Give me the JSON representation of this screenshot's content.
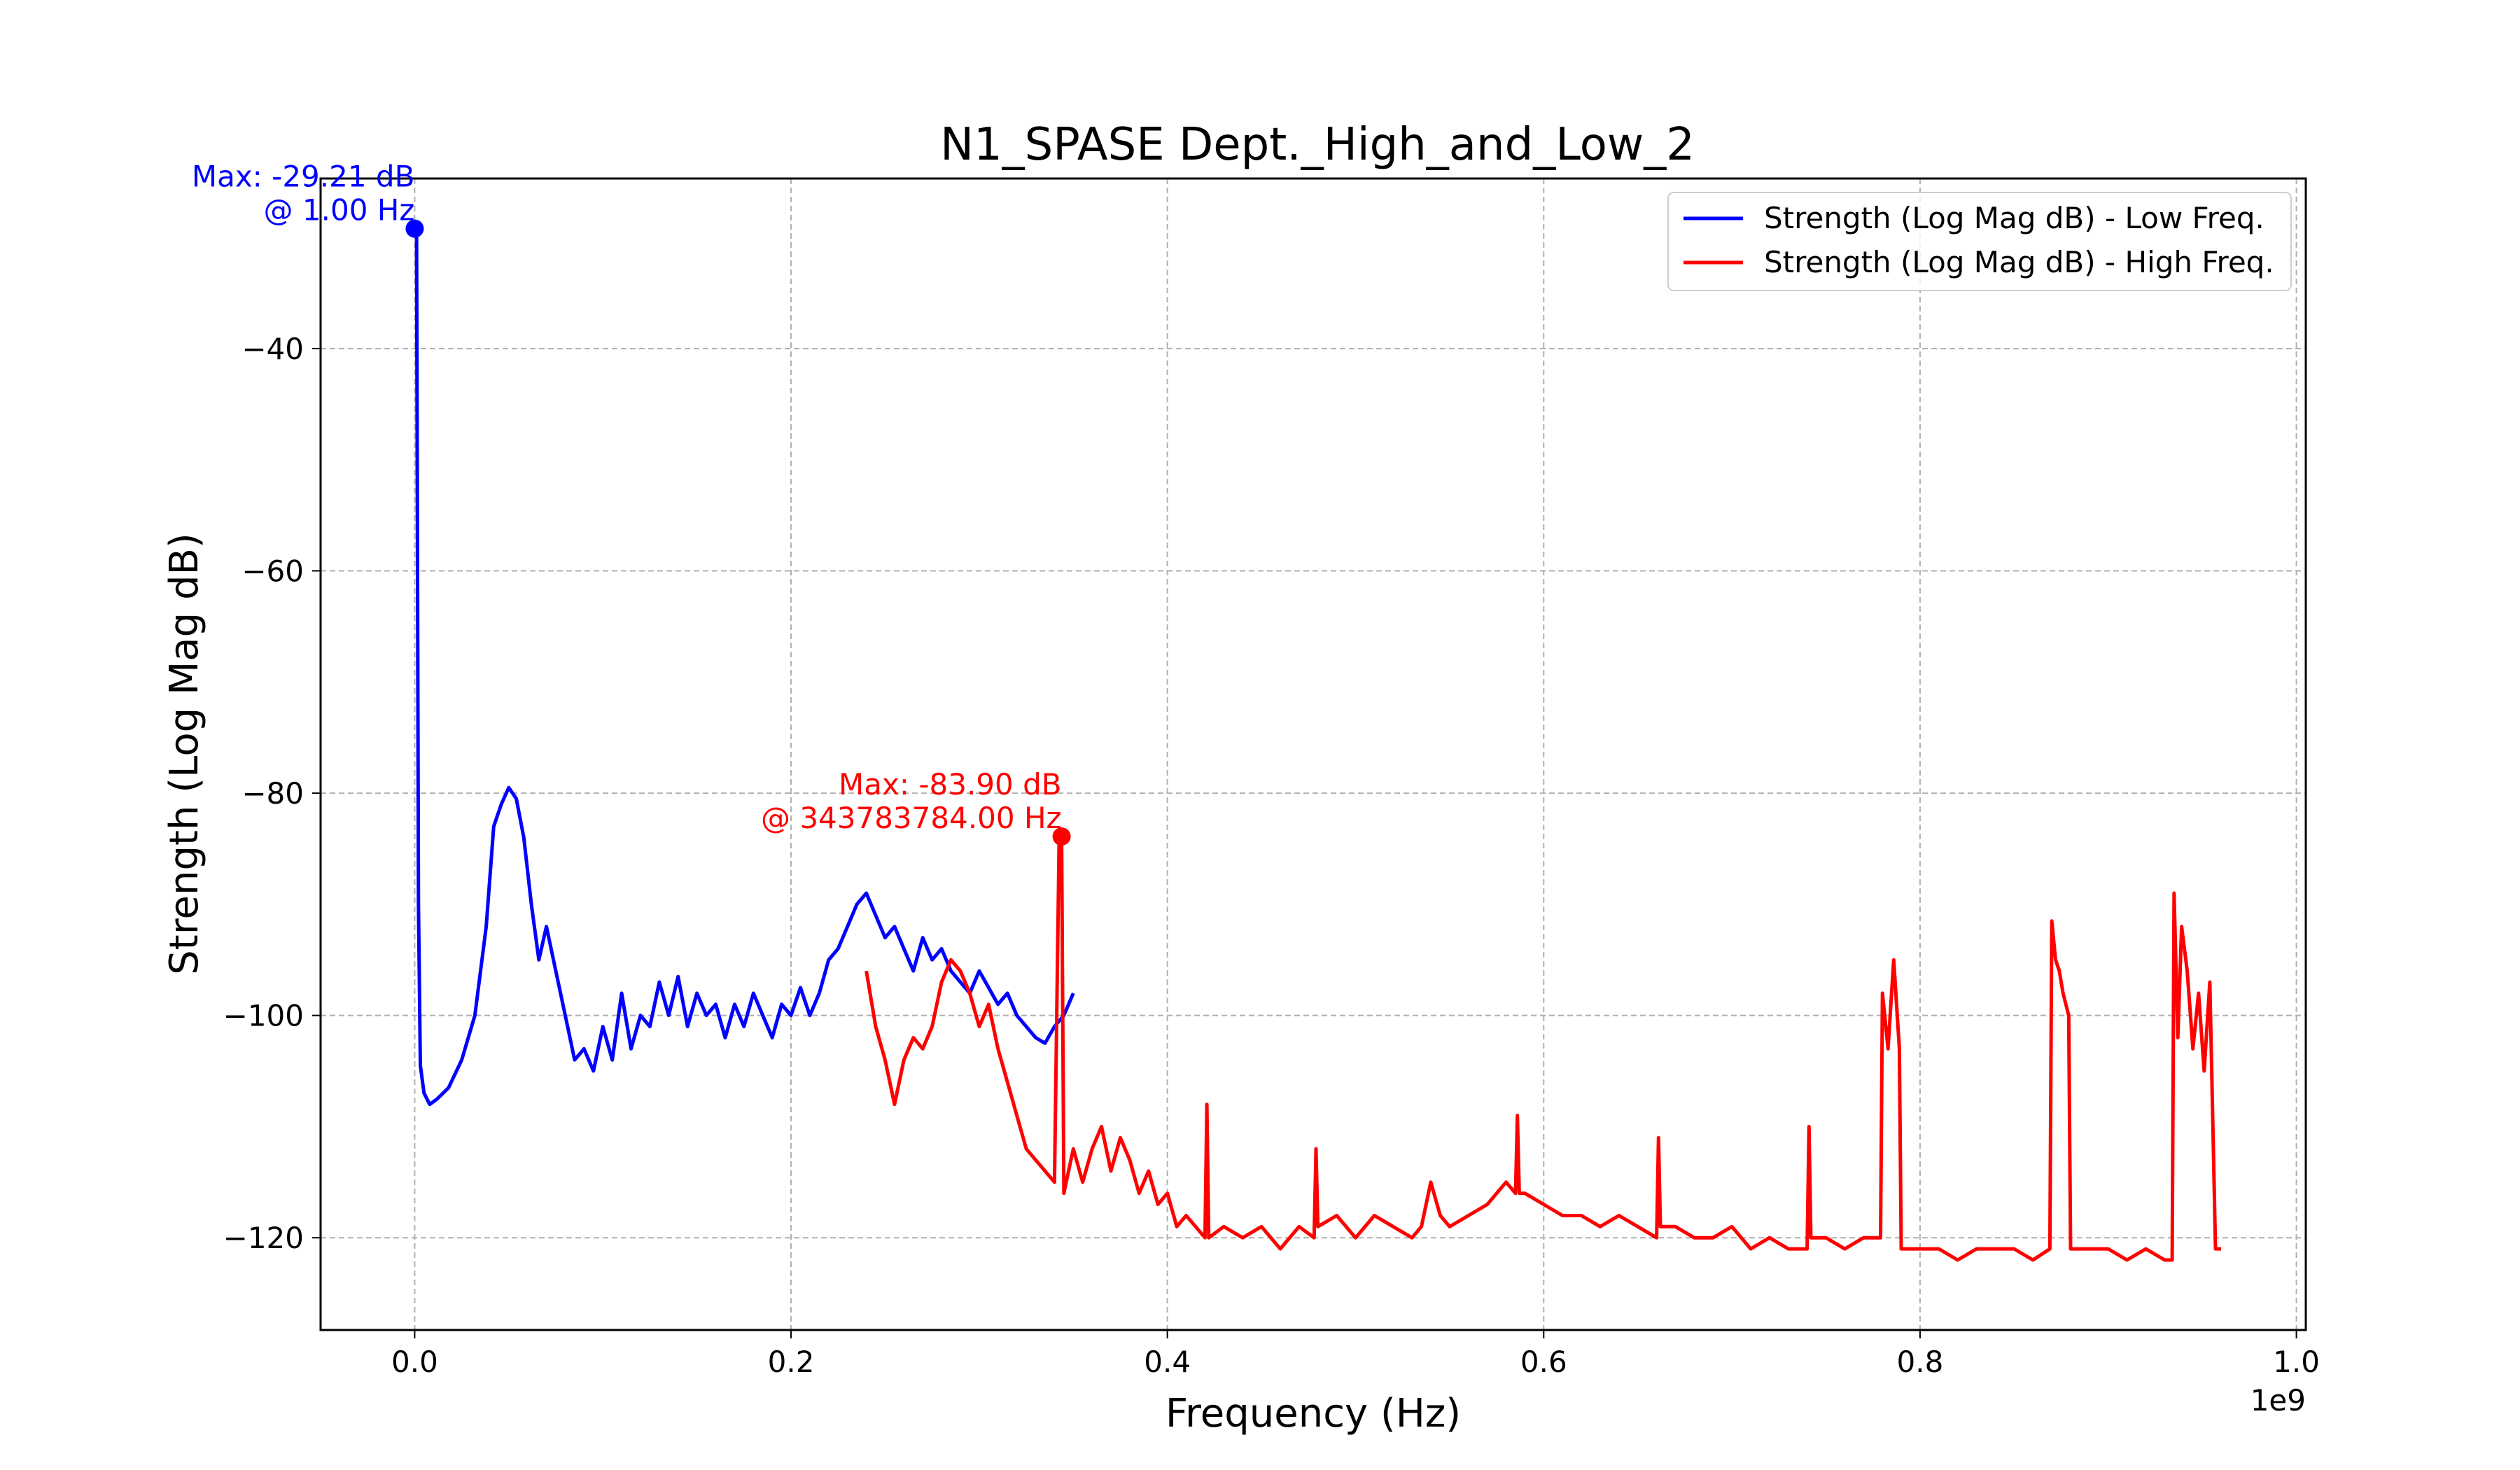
{
  "chart_data": {
    "type": "line",
    "title": "N1_SPASE Dept._High_and_Low_2",
    "xlabel": "Frequency (Hz)",
    "ylabel": "Strength (Log Mag dB)",
    "x_offset_label": "1e9",
    "xlim": [
      -0.05,
      1.005
    ],
    "ylim": [
      -128.3,
      -24.7
    ],
    "x_unit_scale": 1000000000,
    "xticks": [
      0.0,
      0.2,
      0.4,
      0.6,
      0.8,
      1.0
    ],
    "xtick_labels": [
      "0.0",
      "0.2",
      "0.4",
      "0.6",
      "0.8",
      "1.0"
    ],
    "yticks": [
      -40,
      -60,
      -80,
      -100,
      -120
    ],
    "ytick_labels": [
      "−40",
      "−60",
      "−80",
      "−100",
      "−120"
    ],
    "grid": true,
    "legend_position": "upper right",
    "series": [
      {
        "name": "Strength (Log Mag dB) - Low Freq.",
        "color": "#0000ff",
        "x": [
          0.0,
          0.001,
          0.002,
          0.003,
          0.005,
          0.008,
          0.012,
          0.018,
          0.025,
          0.032,
          0.038,
          0.042,
          0.046,
          0.05,
          0.054,
          0.058,
          0.062,
          0.066,
          0.07,
          0.075,
          0.08,
          0.085,
          0.09,
          0.095,
          0.1,
          0.105,
          0.11,
          0.115,
          0.12,
          0.125,
          0.13,
          0.135,
          0.14,
          0.145,
          0.15,
          0.155,
          0.16,
          0.165,
          0.17,
          0.175,
          0.18,
          0.185,
          0.19,
          0.195,
          0.2,
          0.205,
          0.21,
          0.215,
          0.22,
          0.225,
          0.23,
          0.235,
          0.24,
          0.245,
          0.25,
          0.255,
          0.26,
          0.265,
          0.27,
          0.275,
          0.28,
          0.285,
          0.29,
          0.295,
          0.3,
          0.305,
          0.31,
          0.315,
          0.32,
          0.325,
          0.33,
          0.335,
          0.34,
          0.345,
          0.35
        ],
        "y": [
          -29.21,
          -29.5,
          -90.0,
          -104.5,
          -107.0,
          -108.0,
          -107.5,
          -106.5,
          -104.0,
          -100.0,
          -92.0,
          -83.0,
          -81.0,
          -79.5,
          -80.5,
          -84.0,
          -90.0,
          -95.0,
          -92.0,
          -96.0,
          -100.0,
          -104.0,
          -103.0,
          -105.0,
          -101.0,
          -104.0,
          -98.0,
          -103.0,
          -100.0,
          -101.0,
          -97.0,
          -100.0,
          -96.5,
          -101.0,
          -98.0,
          -100.0,
          -99.0,
          -102.0,
          -99.0,
          -101.0,
          -98.0,
          -100.0,
          -102.0,
          -99.0,
          -100.0,
          -97.5,
          -100.0,
          -98.0,
          -95.0,
          -94.0,
          -92.0,
          -90.0,
          -89.0,
          -91.0,
          -93.0,
          -92.0,
          -94.0,
          -96.0,
          -93.0,
          -95.0,
          -94.0,
          -96.0,
          -97.0,
          -98.0,
          -96.0,
          -97.5,
          -99.0,
          -98.0,
          -100.0,
          -101.0,
          -102.0,
          -102.5,
          -101.0,
          -100.0,
          -98.0
        ]
      },
      {
        "name": "Strength (Log Mag dB) - High Freq.",
        "color": "#ff0000",
        "x": [
          0.24,
          0.245,
          0.25,
          0.255,
          0.26,
          0.265,
          0.27,
          0.275,
          0.28,
          0.285,
          0.29,
          0.295,
          0.3,
          0.305,
          0.31,
          0.315,
          0.32,
          0.325,
          0.33,
          0.335,
          0.34,
          0.3425,
          0.3438,
          0.345,
          0.35,
          0.355,
          0.36,
          0.365,
          0.37,
          0.375,
          0.38,
          0.385,
          0.39,
          0.395,
          0.4,
          0.405,
          0.41,
          0.415,
          0.42,
          0.421,
          0.422,
          0.43,
          0.44,
          0.45,
          0.46,
          0.47,
          0.478,
          0.479,
          0.48,
          0.49,
          0.5,
          0.51,
          0.52,
          0.53,
          0.535,
          0.54,
          0.545,
          0.55,
          0.56,
          0.57,
          0.58,
          0.585,
          0.586,
          0.587,
          0.59,
          0.6,
          0.61,
          0.62,
          0.63,
          0.64,
          0.65,
          0.66,
          0.661,
          0.662,
          0.67,
          0.68,
          0.69,
          0.7,
          0.71,
          0.72,
          0.73,
          0.74,
          0.741,
          0.742,
          0.75,
          0.76,
          0.77,
          0.779,
          0.78,
          0.783,
          0.786,
          0.789,
          0.79,
          0.8,
          0.81,
          0.82,
          0.83,
          0.84,
          0.85,
          0.86,
          0.869,
          0.87,
          0.872,
          0.874,
          0.876,
          0.879,
          0.88,
          0.89,
          0.9,
          0.91,
          0.92,
          0.93,
          0.934,
          0.935,
          0.937,
          0.939,
          0.942,
          0.945,
          0.948,
          0.951,
          0.954,
          0.957,
          0.96
        ],
        "y": [
          -96.0,
          -101.0,
          -104.0,
          -108.0,
          -104.0,
          -102.0,
          -103.0,
          -101.0,
          -97.0,
          -95.0,
          -96.0,
          -98.0,
          -101.0,
          -99.0,
          -103.0,
          -106.0,
          -109.0,
          -112.0,
          -113.0,
          -114.0,
          -115.0,
          -83.9,
          -83.9,
          -116.0,
          -112.0,
          -115.0,
          -112.0,
          -110.0,
          -114.0,
          -111.0,
          -113.0,
          -116.0,
          -114.0,
          -117.0,
          -116.0,
          -119.0,
          -118.0,
          -119.0,
          -120.0,
          -108.0,
          -120.0,
          -119.0,
          -120.0,
          -119.0,
          -121.0,
          -119.0,
          -120.0,
          -112.0,
          -119.0,
          -118.0,
          -120.0,
          -118.0,
          -119.0,
          -120.0,
          -119.0,
          -115.0,
          -118.0,
          -119.0,
          -118.0,
          -117.0,
          -115.0,
          -116.0,
          -109.0,
          -116.0,
          -116.0,
          -117.0,
          -118.0,
          -118.0,
          -119.0,
          -118.0,
          -119.0,
          -120.0,
          -111.0,
          -119.0,
          -119.0,
          -120.0,
          -120.0,
          -119.0,
          -121.0,
          -120.0,
          -121.0,
          -121.0,
          -110.0,
          -120.0,
          -120.0,
          -121.0,
          -120.0,
          -120.0,
          -98.0,
          -103.0,
          -95.0,
          -103.0,
          -121.0,
          -121.0,
          -121.0,
          -122.0,
          -121.0,
          -121.0,
          -121.0,
          -122.0,
          -121.0,
          -91.5,
          -95.0,
          -96.0,
          -98.0,
          -100.0,
          -121.0,
          -121.0,
          -121.0,
          -122.0,
          -121.0,
          -122.0,
          -122.0,
          -89.0,
          -102.0,
          -92.0,
          -96.0,
          -103.0,
          -98.0,
          -105.0,
          -97.0,
          -121.0,
          -121.0
        ]
      }
    ],
    "annotations": [
      {
        "line1": "Max: -29.21 dB",
        "line2": "@ 1.00 Hz",
        "x": 1e-09,
        "y": -29.21,
        "color": "#0000ff"
      },
      {
        "line1": "Max: -83.90 dB",
        "line2": "@ 343783784.00 Hz",
        "x": 0.3438,
        "y": -83.9,
        "color": "#ff0000"
      }
    ]
  }
}
